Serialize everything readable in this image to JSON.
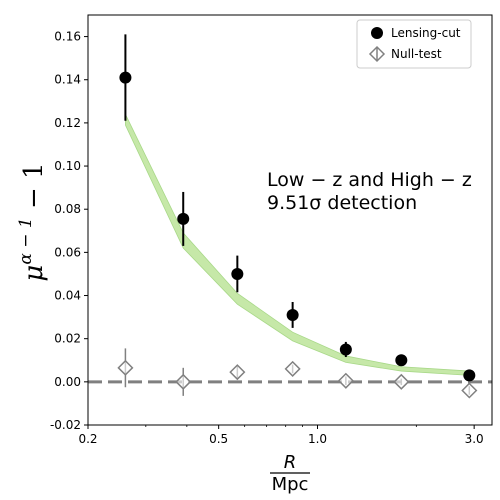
{
  "chart_data": {
    "type": "scatter",
    "xscale": "log",
    "xlim": [
      0.2,
      3.4
    ],
    "ylim": [
      -0.02,
      0.17
    ],
    "xticks": [
      0.2,
      0.5,
      1.0,
      3.0
    ],
    "xtick_labels": [
      "0.2",
      "0.5",
      "1.0",
      "3.0"
    ],
    "yticks": [
      -0.02,
      0.0,
      0.02,
      0.04,
      0.06,
      0.08,
      0.1,
      0.12,
      0.14,
      0.16
    ],
    "ytick_labels": [
      "-0.02",
      "0.00",
      "0.02",
      "0.04",
      "0.06",
      "0.08",
      "0.10",
      "0.12",
      "0.14",
      "0.16"
    ],
    "xlabel": {
      "numerator": "R",
      "denominator": "Mpc"
    },
    "ylabel": {
      "base": "μ",
      "exponent": "α − 1",
      "suffix": " − 1"
    },
    "annotation": {
      "line1": "Low − z and High − z",
      "line2": "9.51σ detection"
    },
    "legend_position": "top-right",
    "reference_line": {
      "y": 0.0,
      "color": "#808080",
      "style": "dashed"
    },
    "band": {
      "color": "#c6e8a8",
      "edge_color": "#a8d888",
      "x": [
        0.26,
        0.39,
        0.57,
        0.84,
        1.22,
        1.8,
        2.9
      ],
      "lower": [
        0.119,
        0.062,
        0.036,
        0.019,
        0.009,
        0.005,
        0.003
      ],
      "upper": [
        0.124,
        0.069,
        0.041,
        0.023,
        0.012,
        0.007,
        0.005
      ]
    },
    "series": [
      {
        "name": "Lensing-cut",
        "marker": "filled-circle",
        "color": "#000000",
        "x": [
          0.26,
          0.39,
          0.57,
          0.84,
          1.22,
          1.8,
          2.9
        ],
        "y": [
          0.141,
          0.0755,
          0.05,
          0.031,
          0.015,
          0.01,
          0.003
        ],
        "yerr": [
          0.02,
          0.0125,
          0.0085,
          0.006,
          0.0035,
          0.0015,
          0.001
        ]
      },
      {
        "name": "Null-test",
        "marker": "open-diamond",
        "color": "#808080",
        "x": [
          0.26,
          0.39,
          0.57,
          0.84,
          1.22,
          1.8,
          2.9
        ],
        "y": [
          0.0065,
          0.0,
          0.0045,
          0.006,
          0.0005,
          0.0,
          -0.004
        ],
        "yerr": [
          0.009,
          0.0065,
          0.003,
          0.002,
          0.002,
          0.0015,
          0.002
        ]
      }
    ]
  }
}
